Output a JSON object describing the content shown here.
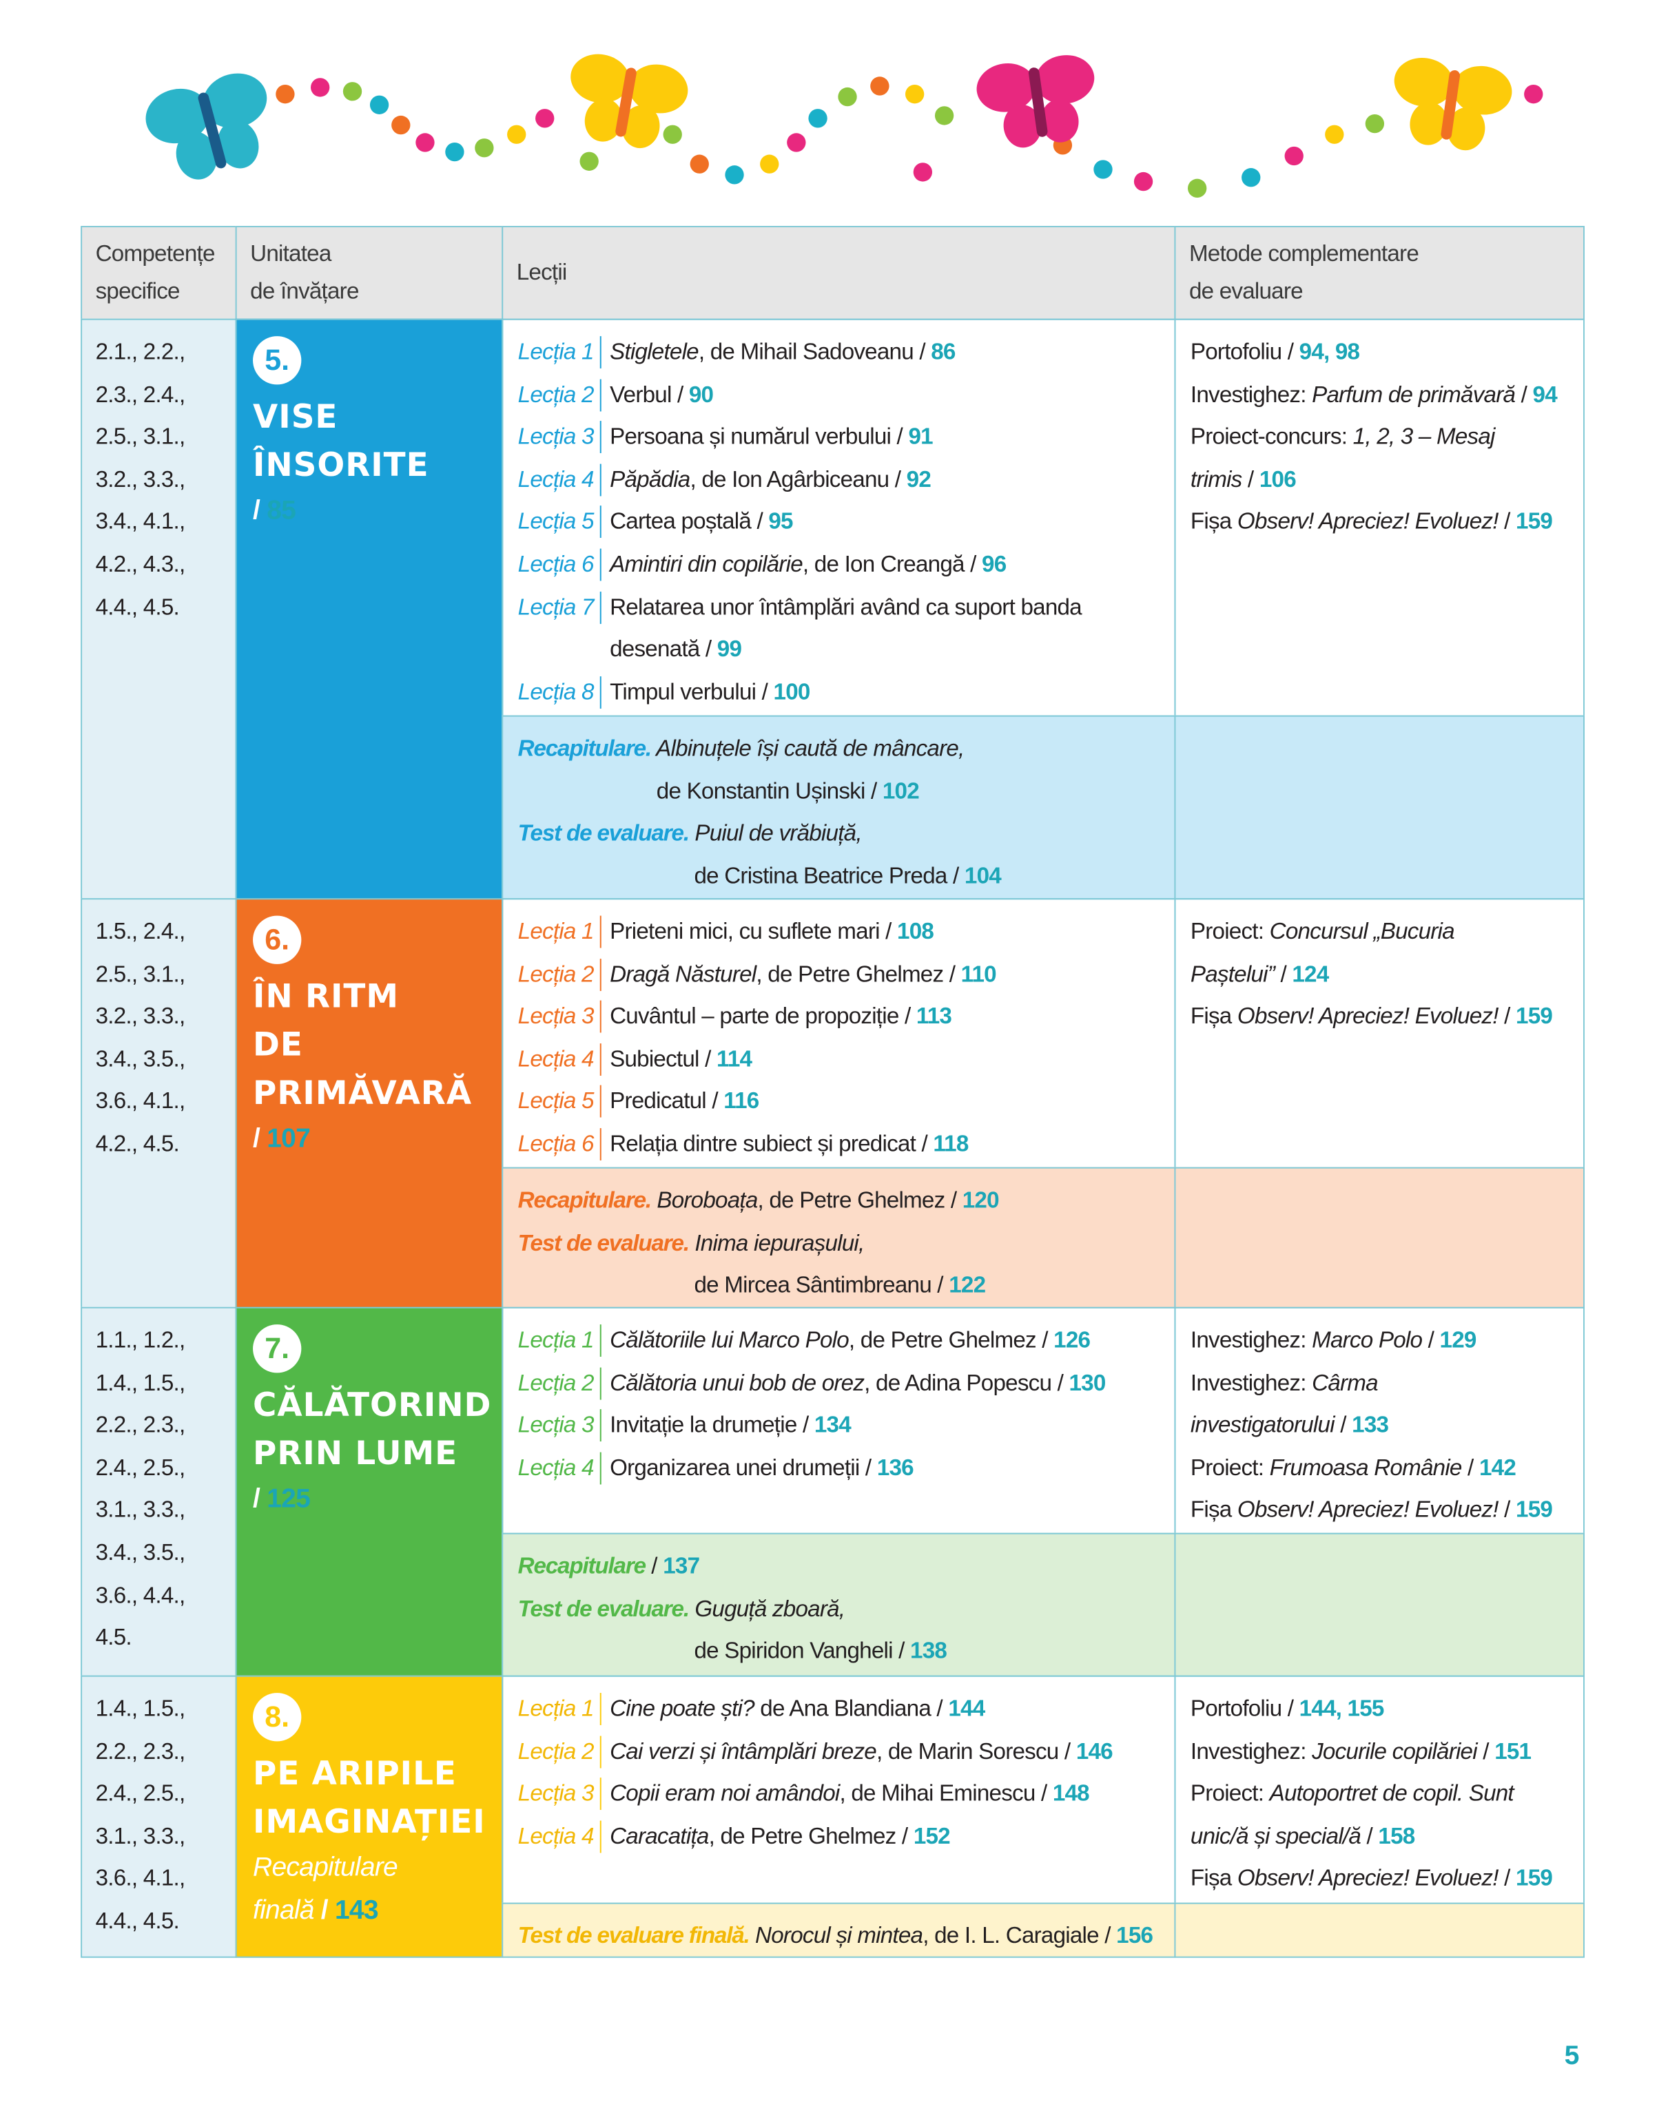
{
  "header": {
    "competencies": [
      "Competențe",
      "specifice"
    ],
    "unit": [
      "Unitatea",
      "de învățare"
    ],
    "lessons": [
      "Lecții"
    ],
    "methods": [
      "Metode complementare",
      "de evaluare"
    ]
  },
  "units": [
    {
      "competencies": [
        "2.1., 2.2.,",
        "2.3., 2.4.,",
        "2.5., 3.1.,",
        "3.2., 3.3.,",
        "3.4., 4.1.,",
        "4.2., 4.3.,",
        "4.4., 4.5."
      ],
      "number": "5.",
      "title": [
        "VISE",
        "ÎNSORITE"
      ],
      "ref": [
        [
          {
            "text": "/ "
          },
          {
            "page": "85"
          }
        ]
      ],
      "lessons": [
        {
          "label": "Lecția 1",
          "lines": [
            [
              {
                "italic": "Stigletele"
              },
              {
                "text": ", de Mihail Sadoveanu / "
              },
              {
                "page": "86"
              }
            ]
          ]
        },
        {
          "label": "Lecția 2",
          "lines": [
            [
              {
                "text": "Verbul / "
              },
              {
                "page": "90"
              }
            ]
          ]
        },
        {
          "label": "Lecția 3",
          "lines": [
            [
              {
                "text": "Persoana și numărul verbului / "
              },
              {
                "page": "91"
              }
            ]
          ]
        },
        {
          "label": "Lecția 4",
          "lines": [
            [
              {
                "italic": "Păpădia"
              },
              {
                "text": ", de Ion Agârbiceanu / "
              },
              {
                "page": "92"
              }
            ]
          ]
        },
        {
          "label": "Lecția 5",
          "lines": [
            [
              {
                "text": "Cartea poștală / "
              },
              {
                "page": "95"
              }
            ]
          ]
        },
        {
          "label": "Lecția 6",
          "lines": [
            [
              {
                "italic": "Amintiri din copilărie"
              },
              {
                "text": ", de Ion Creangă / "
              },
              {
                "page": "96"
              }
            ]
          ]
        },
        {
          "label": "Lecția 7",
          "lines": [
            [
              {
                "text": "Relatarea unor întâmplări având ca suport banda"
              }
            ],
            [
              {
                "text": "desenată / "
              },
              {
                "page": "99"
              }
            ]
          ]
        },
        {
          "label": "Lecția 8",
          "lines": [
            [
              {
                "text": "Timpul verbului / "
              },
              {
                "page": "100"
              }
            ]
          ]
        }
      ],
      "methods": [
        [
          {
            "text": "Portofoliu / "
          },
          {
            "page": "94, 98"
          }
        ],
        [
          {
            "text": "Investighez: "
          },
          {
            "italic": "Parfum de primăvară"
          },
          {
            "text": " / "
          },
          {
            "page": "94"
          }
        ],
        [
          {
            "text": "Proiect-concurs: "
          },
          {
            "italic": "1, 2, 3 – Mesaj"
          }
        ],
        [
          {
            "italic": "trimis"
          },
          {
            "text": " / "
          },
          {
            "page": "106"
          }
        ],
        [
          {
            "text": "Fișa "
          },
          {
            "italic": "Observ! Apreciez! Evoluez!"
          },
          {
            "text": " / "
          },
          {
            "page": "159"
          }
        ]
      ],
      "recap": [
        [
          [
            {
              "head": "Recapitulare."
            },
            {
              "italic": " Albinuțele își caută de mâncare,"
            }
          ],
          [
            {
              "text": "de Konstantin Ușinski / "
            },
            {
              "page": "102"
            }
          ]
        ],
        [
          [
            {
              "head": "Test de evaluare."
            },
            {
              "italic": " Puiul de vrăbiuță,"
            }
          ],
          [
            {
              "text": "de Cristina Beatrice Preda / "
            },
            {
              "page": "104"
            }
          ]
        ]
      ]
    },
    {
      "competencies": [
        "1.5., 2.4.,",
        "2.5., 3.1.,",
        "3.2., 3.3.,",
        "3.4., 3.5.,",
        "3.6., 4.1.,",
        "4.2., 4.5."
      ],
      "number": "6.",
      "title": [
        "ÎN RITM",
        "DE",
        "PRIMĂVARĂ"
      ],
      "ref": [
        [
          {
            "text": "/ "
          },
          {
            "page": "107"
          }
        ]
      ],
      "lessons": [
        {
          "label": "Lecția 1",
          "lines": [
            [
              {
                "text": "Prieteni mici, cu suflete mari / "
              },
              {
                "page": "108"
              }
            ]
          ]
        },
        {
          "label": "Lecția 2",
          "lines": [
            [
              {
                "italic": "Dragă Năsturel"
              },
              {
                "text": ", de Petre Ghelmez / "
              },
              {
                "page": "110"
              }
            ]
          ]
        },
        {
          "label": "Lecția 3",
          "lines": [
            [
              {
                "text": "Cuvântul – parte de propoziție / "
              },
              {
                "page": "113"
              }
            ]
          ]
        },
        {
          "label": "Lecția 4",
          "lines": [
            [
              {
                "text": "Subiectul / "
              },
              {
                "page": "114"
              }
            ]
          ]
        },
        {
          "label": "Lecția 5",
          "lines": [
            [
              {
                "text": "Predicatul / "
              },
              {
                "page": "116"
              }
            ]
          ]
        },
        {
          "label": "Lecția 6",
          "lines": [
            [
              {
                "text": "Relația dintre subiect și predicat / "
              },
              {
                "page": "118"
              }
            ]
          ]
        }
      ],
      "methods": [
        [
          {
            "text": "Proiect: "
          },
          {
            "italic": "Concursul „Bucuria"
          }
        ],
        [
          {
            "italic": "Paștelui”"
          },
          {
            "text": " / "
          },
          {
            "page": "124"
          }
        ],
        [
          {
            "text": "Fișa "
          },
          {
            "italic": "Observ! Apreciez! Evoluez!"
          },
          {
            "text": " / "
          },
          {
            "page": "159"
          }
        ]
      ],
      "recap": [
        [
          [
            {
              "head": "Recapitulare."
            },
            {
              "italic": " Boroboața"
            },
            {
              "text": ", de Petre Ghelmez / "
            },
            {
              "page": "120"
            }
          ]
        ],
        [
          [
            {
              "head": "Test de evaluare."
            },
            {
              "italic": " Inima iepurașului,"
            }
          ],
          [
            {
              "text": "de Mircea Sântimbreanu / "
            },
            {
              "page": "122"
            }
          ]
        ]
      ]
    },
    {
      "competencies": [
        "1.1., 1.2.,",
        "1.4., 1.5.,",
        "2.2., 2.3.,",
        "2.4., 2.5.,",
        "3.1., 3.3.,",
        "3.4., 3.5.,",
        "3.6., 4.4.,",
        "4.5."
      ],
      "number": "7.",
      "title": [
        "CĂLĂTORIND",
        "PRIN LUME"
      ],
      "ref": [
        [
          {
            "text": "/ "
          },
          {
            "page": "125"
          }
        ]
      ],
      "lessons": [
        {
          "label": "Lecția 1",
          "lines": [
            [
              {
                "italic": "Călătoriile lui Marco Polo"
              },
              {
                "text": ", de Petre Ghelmez / "
              },
              {
                "page": "126"
              }
            ]
          ]
        },
        {
          "label": "Lecția 2",
          "lines": [
            [
              {
                "italic": "Călătoria unui bob de orez"
              },
              {
                "text": ", de Adina Popescu / "
              },
              {
                "page": "130"
              }
            ]
          ]
        },
        {
          "label": "Lecția 3",
          "lines": [
            [
              {
                "text": "Invitație la drumeție / "
              },
              {
                "page": "134"
              }
            ]
          ]
        },
        {
          "label": "Lecția 4",
          "lines": [
            [
              {
                "text": "Organizarea unei drumeții / "
              },
              {
                "page": "136"
              }
            ]
          ]
        }
      ],
      "methods": [
        [
          {
            "text": "Investighez: "
          },
          {
            "italic": "Marco Polo"
          },
          {
            "text": " / "
          },
          {
            "page": "129"
          }
        ],
        [
          {
            "text": "Investighez: "
          },
          {
            "italic": "Cârma"
          }
        ],
        [
          {
            "italic": "investigatorului"
          },
          {
            "text": " / "
          },
          {
            "page": "133"
          }
        ],
        [
          {
            "text": "Proiect: "
          },
          {
            "italic": "Frumoasa Românie"
          },
          {
            "text": " / "
          },
          {
            "page": "142"
          }
        ],
        [
          {
            "text": "Fișa "
          },
          {
            "italic": "Observ! Apreciez! Evoluez!"
          },
          {
            "text": " / "
          },
          {
            "page": "159"
          }
        ]
      ],
      "recap": [
        [
          [
            {
              "head": "Recapitulare"
            },
            {
              "text": " / "
            },
            {
              "page": "137"
            }
          ]
        ],
        [
          [
            {
              "head": "Test de evaluare."
            },
            {
              "italic": " Guguță zboară,"
            }
          ],
          [
            {
              "text": "de Spiridon Vangheli / "
            },
            {
              "page": "138"
            }
          ]
        ]
      ]
    },
    {
      "competencies": [
        "1.4., 1.5.,",
        "2.2., 2.3.,",
        "2.4., 2.5.,",
        "3.1., 3.3.,",
        "3.6., 4.1.,",
        "4.4., 4.5."
      ],
      "number": "8.",
      "title": [
        "PE ARIPILE",
        "IMAGINAȚIEI"
      ],
      "ref": [
        [
          {
            "italic": "Recapitulare"
          }
        ],
        [
          {
            "italic": "finală"
          },
          {
            "text": " / "
          },
          {
            "page": "143"
          }
        ]
      ],
      "lessons": [
        {
          "label": "Lecția 1",
          "lines": [
            [
              {
                "italic": "Cine poate ști?"
              },
              {
                "text": " de Ana Blandiana / "
              },
              {
                "page": "144"
              }
            ]
          ]
        },
        {
          "label": "Lecția 2",
          "lines": [
            [
              {
                "italic": "Cai verzi și întâmplări breze"
              },
              {
                "text": ", de Marin Sorescu / "
              },
              {
                "page": "146"
              }
            ]
          ]
        },
        {
          "label": "Lecția 3",
          "lines": [
            [
              {
                "italic": "Copii eram noi amândoi"
              },
              {
                "text": ", de Mihai Eminescu / "
              },
              {
                "page": "148"
              }
            ]
          ]
        },
        {
          "label": "Lecția 4",
          "lines": [
            [
              {
                "italic": "Caracatița"
              },
              {
                "text": ", de Petre Ghelmez / "
              },
              {
                "page": "152"
              }
            ]
          ]
        }
      ],
      "methods": [
        [
          {
            "text": "Portofoliu / "
          },
          {
            "page": "144, 155"
          }
        ],
        [
          {
            "text": "Investighez: "
          },
          {
            "italic": "Jocurile copilăriei"
          },
          {
            "text": " / "
          },
          {
            "page": "151"
          }
        ],
        [
          {
            "text": "Proiect: "
          },
          {
            "italic": "Autoportret de copil. Sunt"
          }
        ],
        [
          {
            "italic": "unic/ă și special/ă"
          },
          {
            "text": " / "
          },
          {
            "page": "158"
          }
        ],
        [
          {
            "text": "Fișa "
          },
          {
            "italic": "Observ! Apreciez! Evoluez!"
          },
          {
            "text": " / "
          },
          {
            "page": "159"
          }
        ]
      ],
      "recap": [
        [
          [
            {
              "head": "Test de evaluare finală."
            },
            {
              "italic": " Norocul și mintea"
            },
            {
              "text": ", de I. L. Caragiale / "
            },
            {
              "page": "156"
            }
          ]
        ]
      ]
    }
  ],
  "page_number": "5"
}
